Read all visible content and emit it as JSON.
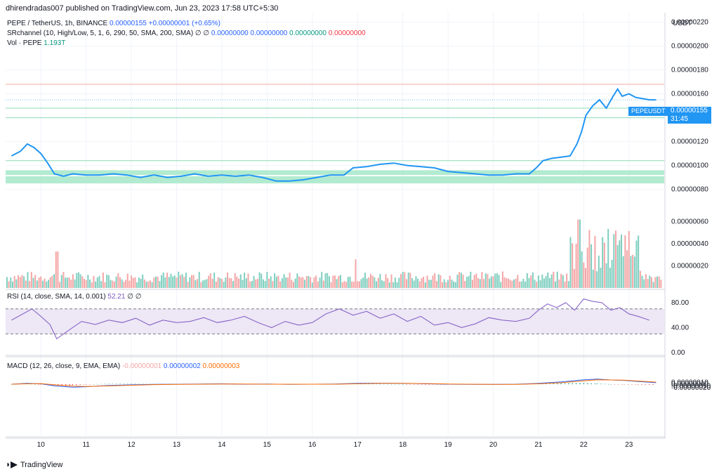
{
  "header": {
    "published": "dhirendradas007 published on TradingView.com, Jun 23, 2023 17:58 UTC+5:30"
  },
  "legend": {
    "symbol": "PEPE / TetherUS, 1h, BINANCE",
    "price": "0.00000155",
    "change": "+0.00000001 (+0.65%)",
    "sr_label": "SRchannel (10, High/Low, 5, 1, 6, 290, 50, SMA, 200, SMA)  ∅  ∅",
    "sr_values": [
      "0.00000000",
      "0.00000000",
      "0.00000000",
      "0.00000000"
    ],
    "vol_label": "Vol · PEPE",
    "vol_value": "1.193T",
    "rsi_label": "RSI (14, close, SMA, 14, 0.001)",
    "rsi_value": "52.21",
    "rsi_extra": "∅  ∅",
    "macd_label": "MACD (12, 26, close, 9, EMA, EMA)",
    "macd_values": [
      "-0.00000001",
      "0.00000002",
      "0.00000003"
    ]
  },
  "price_badge": {
    "symbol": "PEPEUSDT",
    "price": "0.00000155",
    "countdown": "31:45"
  },
  "footer": {
    "brand": "TradingView"
  },
  "colors": {
    "price_line": "#2196f3",
    "support_fill": "#a5e8c8",
    "resist_line": "#f7a99b",
    "vol_up": "#7fcfbf",
    "vol_down": "#f4a6a6",
    "rsi_line": "#7e57c2",
    "rsi_band": "#ede7f6",
    "macd_line": "#2962ff",
    "signal_line": "#ff6d00",
    "hist_up": "#26a69a",
    "hist_down": "#ef5350"
  },
  "chart_data": {
    "type": "line",
    "currency_label": "USDT",
    "x_ticks": [
      "10",
      "11",
      "12",
      "13",
      "14",
      "15",
      "16",
      "17",
      "18",
      "19",
      "20",
      "21",
      "22",
      "23"
    ],
    "price_axis_labels": [
      "0.00000220",
      "0.00000200",
      "0.00000180",
      "0.00000160",
      "0.00000140",
      "0.00000120",
      "0.00000100",
      "0.00000080",
      "0.00000060",
      "0.00000040",
      "0.00000020"
    ],
    "price_ylim": [
      0.0,
      2.35e-06
    ],
    "price_series": [
      [
        9.35,
        1.08
      ],
      [
        9.55,
        1.12
      ],
      [
        9.7,
        1.18
      ],
      [
        9.85,
        1.15
      ],
      [
        10.0,
        1.1
      ],
      [
        10.15,
        1.02
      ],
      [
        10.3,
        0.93
      ],
      [
        10.5,
        0.91
      ],
      [
        10.7,
        0.93
      ],
      [
        11.0,
        0.92
      ],
      [
        11.3,
        0.92
      ],
      [
        11.6,
        0.93
      ],
      [
        11.9,
        0.92
      ],
      [
        12.2,
        0.9
      ],
      [
        12.5,
        0.92
      ],
      [
        12.8,
        0.9
      ],
      [
        13.1,
        0.91
      ],
      [
        13.4,
        0.93
      ],
      [
        13.7,
        0.91
      ],
      [
        14.0,
        0.92
      ],
      [
        14.3,
        0.91
      ],
      [
        14.6,
        0.92
      ],
      [
        14.9,
        0.9
      ],
      [
        15.2,
        0.87
      ],
      [
        15.5,
        0.87
      ],
      [
        15.8,
        0.88
      ],
      [
        16.1,
        0.9
      ],
      [
        16.4,
        0.92
      ],
      [
        16.7,
        0.92
      ],
      [
        16.9,
        0.98
      ],
      [
        17.2,
        0.99
      ],
      [
        17.5,
        1.01
      ],
      [
        17.8,
        1.02
      ],
      [
        18.1,
        1.0
      ],
      [
        18.4,
        0.99
      ],
      [
        18.7,
        0.98
      ],
      [
        19.0,
        0.95
      ],
      [
        19.3,
        0.94
      ],
      [
        19.6,
        0.93
      ],
      [
        19.9,
        0.92
      ],
      [
        20.2,
        0.92
      ],
      [
        20.5,
        0.93
      ],
      [
        20.8,
        0.93
      ],
      [
        20.95,
        0.98
      ],
      [
        21.1,
        1.04
      ],
      [
        21.3,
        1.06
      ],
      [
        21.5,
        1.07
      ],
      [
        21.7,
        1.08
      ],
      [
        21.85,
        1.18
      ],
      [
        21.95,
        1.28
      ],
      [
        22.05,
        1.42
      ],
      [
        22.2,
        1.5
      ],
      [
        22.35,
        1.55
      ],
      [
        22.5,
        1.48
      ],
      [
        22.65,
        1.58
      ],
      [
        22.75,
        1.64
      ],
      [
        22.85,
        1.58
      ],
      [
        23.0,
        1.6
      ],
      [
        23.15,
        1.57
      ],
      [
        23.3,
        1.56
      ],
      [
        23.45,
        1.55
      ],
      [
        23.6,
        1.55
      ]
    ],
    "sr_channels": [
      {
        "type": "support",
        "from": 8.5e-07,
        "to": 9.1e-07
      },
      {
        "type": "support",
        "from": 9.2e-07,
        "to": 9.6e-07
      }
    ],
    "sr_lines": [
      1.04e-06,
      1.4e-06,
      1.48e-06,
      1.68e-06
    ],
    "volume_axis_labels": [
      "0.00000060",
      "0.00000040",
      "0.00000020"
    ],
    "rsi_axis_labels": [
      "80.00",
      "40.00",
      "0.00"
    ],
    "rsi_band": [
      30,
      70
    ],
    "rsi_series": [
      [
        9.35,
        52
      ],
      [
        9.6,
        62
      ],
      [
        9.8,
        70
      ],
      [
        10.0,
        58
      ],
      [
        10.2,
        45
      ],
      [
        10.35,
        22
      ],
      [
        10.6,
        35
      ],
      [
        10.9,
        50
      ],
      [
        11.2,
        45
      ],
      [
        11.5,
        52
      ],
      [
        11.8,
        48
      ],
      [
        12.1,
        55
      ],
      [
        12.4,
        44
      ],
      [
        12.7,
        52
      ],
      [
        13.0,
        48
      ],
      [
        13.3,
        50
      ],
      [
        13.6,
        56
      ],
      [
        13.9,
        48
      ],
      [
        14.2,
        52
      ],
      [
        14.5,
        58
      ],
      [
        14.8,
        48
      ],
      [
        15.1,
        40
      ],
      [
        15.4,
        50
      ],
      [
        15.7,
        44
      ],
      [
        16.0,
        48
      ],
      [
        16.3,
        62
      ],
      [
        16.6,
        70
      ],
      [
        16.9,
        60
      ],
      [
        17.2,
        66
      ],
      [
        17.5,
        55
      ],
      [
        17.8,
        62
      ],
      [
        18.1,
        50
      ],
      [
        18.4,
        58
      ],
      [
        18.7,
        44
      ],
      [
        19.0,
        48
      ],
      [
        19.3,
        40
      ],
      [
        19.6,
        46
      ],
      [
        19.9,
        56
      ],
      [
        20.2,
        52
      ],
      [
        20.5,
        50
      ],
      [
        20.8,
        55
      ],
      [
        21.0,
        68
      ],
      [
        21.2,
        78
      ],
      [
        21.4,
        72
      ],
      [
        21.6,
        80
      ],
      [
        21.8,
        68
      ],
      [
        22.0,
        86
      ],
      [
        22.2,
        82
      ],
      [
        22.4,
        80
      ],
      [
        22.6,
        68
      ],
      [
        22.8,
        72
      ],
      [
        23.0,
        62
      ],
      [
        23.2,
        58
      ],
      [
        23.45,
        52
      ]
    ],
    "macd_axis_labels": [
      "0.00000010",
      "0.00000000",
      "-0.00000010",
      "-0.00000020"
    ],
    "macd_series": [
      [
        9.35,
        0.0
      ],
      [
        9.7,
        0.4
      ],
      [
        10.0,
        0.2
      ],
      [
        10.3,
        -0.8
      ],
      [
        10.7,
        -1.4
      ],
      [
        11.0,
        -1.2
      ],
      [
        11.5,
        -0.6
      ],
      [
        12.0,
        -0.3
      ],
      [
        12.5,
        -0.1
      ],
      [
        13.0,
        0.0
      ],
      [
        13.5,
        0.1
      ],
      [
        14.0,
        0.2
      ],
      [
        14.5,
        0.0
      ],
      [
        15.0,
        0.1
      ],
      [
        15.5,
        -0.1
      ],
      [
        16.0,
        0.0
      ],
      [
        16.5,
        0.1
      ],
      [
        17.0,
        0.4
      ],
      [
        17.5,
        0.5
      ],
      [
        18.0,
        0.4
      ],
      [
        18.5,
        0.2
      ],
      [
        19.0,
        0.0
      ],
      [
        19.5,
        -0.1
      ],
      [
        20.0,
        -0.1
      ],
      [
        20.5,
        0.0
      ],
      [
        21.0,
        0.4
      ],
      [
        21.5,
        1.1
      ],
      [
        22.0,
        2.1
      ],
      [
        22.3,
        2.4
      ],
      [
        22.6,
        2.0
      ],
      [
        22.9,
        1.8
      ],
      [
        23.2,
        1.3
      ],
      [
        23.6,
        0.7
      ]
    ],
    "signal_series": [
      [
        9.35,
        0.0
      ],
      [
        9.7,
        0.2
      ],
      [
        10.0,
        0.3
      ],
      [
        10.3,
        -0.3
      ],
      [
        10.7,
        -0.9
      ],
      [
        11.0,
        -1.1
      ],
      [
        11.5,
        -0.8
      ],
      [
        12.0,
        -0.5
      ],
      [
        12.5,
        -0.2
      ],
      [
        13.0,
        -0.1
      ],
      [
        13.5,
        0.0
      ],
      [
        14.0,
        0.1
      ],
      [
        14.5,
        0.1
      ],
      [
        15.0,
        0.0
      ],
      [
        15.5,
        0.0
      ],
      [
        16.0,
        0.0
      ],
      [
        16.5,
        0.0
      ],
      [
        17.0,
        0.2
      ],
      [
        17.5,
        0.4
      ],
      [
        18.0,
        0.4
      ],
      [
        18.5,
        0.3
      ],
      [
        19.0,
        0.1
      ],
      [
        19.5,
        0.0
      ],
      [
        20.0,
        -0.1
      ],
      [
        20.5,
        -0.1
      ],
      [
        21.0,
        0.2
      ],
      [
        21.5,
        0.7
      ],
      [
        22.0,
        1.6
      ],
      [
        22.3,
        2.1
      ],
      [
        22.6,
        2.0
      ],
      [
        22.9,
        1.9
      ],
      [
        23.2,
        1.5
      ],
      [
        23.6,
        1.0
      ]
    ]
  }
}
